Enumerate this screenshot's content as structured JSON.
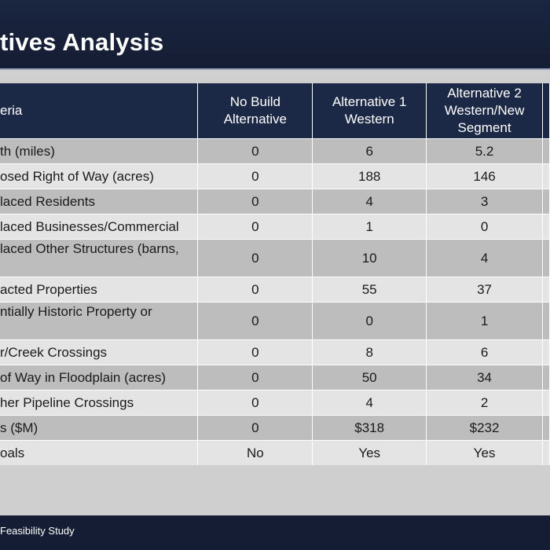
{
  "slide": {
    "title": "tives Analysis",
    "footer": "Feasibility Study"
  },
  "table": {
    "headers": [
      "eria",
      "No Build Alternative",
      "Alternative 1 Western",
      "Alternative 2 Western/New Segment",
      ""
    ],
    "rows": [
      {
        "criteria": "th (miles)",
        "no_build": "0",
        "alt1": "6",
        "alt2": "5.2"
      },
      {
        "criteria": "osed Right of Way (acres)",
        "no_build": "0",
        "alt1": "188",
        "alt2": "146"
      },
      {
        "criteria": "laced Residents",
        "no_build": "0",
        "alt1": "4",
        "alt2": "3"
      },
      {
        "criteria": "laced Businesses/Commercial",
        "no_build": "0",
        "alt1": "1",
        "alt2": "0"
      },
      {
        "criteria": "laced Other Structures (barns,",
        "no_build": "0",
        "alt1": "10",
        "alt2": "4"
      },
      {
        "criteria": "acted Properties",
        "no_build": "0",
        "alt1": "55",
        "alt2": "37"
      },
      {
        "criteria": "ntially Historic Property or",
        "no_build": "0",
        "alt1": "0",
        "alt2": "1"
      },
      {
        "criteria": "r/Creek Crossings",
        "no_build": "0",
        "alt1": "8",
        "alt2": "6"
      },
      {
        "criteria": "of Way in Floodplain (acres)",
        "no_build": "0",
        "alt1": "50",
        "alt2": "34"
      },
      {
        "criteria": "her Pipeline Crossings",
        "no_build": "0",
        "alt1": "4",
        "alt2": "2"
      },
      {
        "criteria": "s ($M)",
        "no_build": "0",
        "alt1": "$318",
        "alt2": "$232"
      },
      {
        "criteria": "oals",
        "no_build": "No",
        "alt1": "Yes",
        "alt2": "Yes"
      }
    ]
  }
}
